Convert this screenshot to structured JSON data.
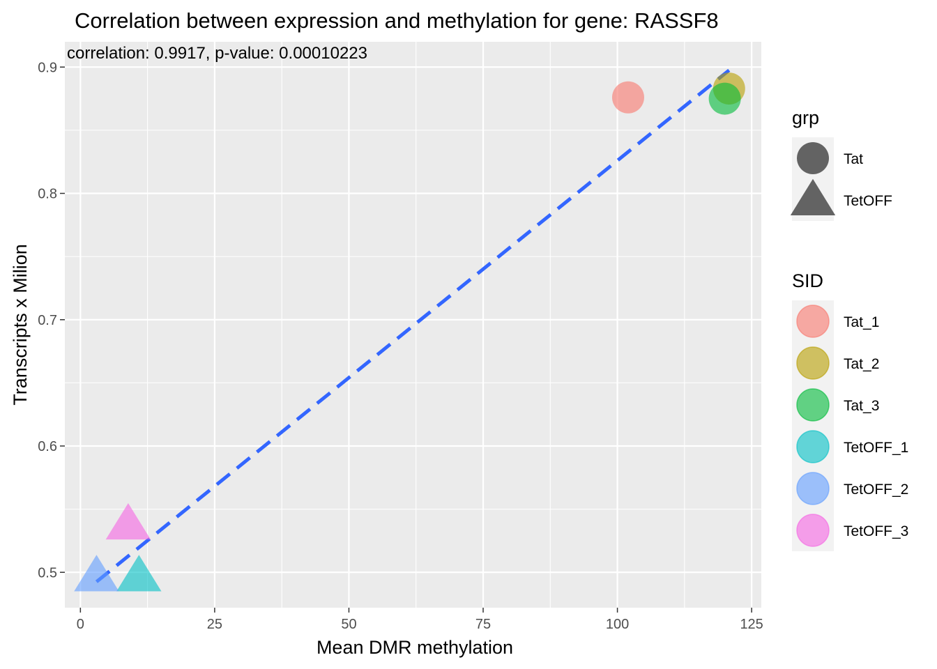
{
  "chart_data": {
    "type": "scatter",
    "title": "Correlation between expression and methylation for gene: RASSF8",
    "annotation": "correlation: 0.9917, p-value: 0.00010223",
    "xlabel": "Mean DMR methylation",
    "ylabel": "Transcripts x Milion",
    "xlim": [
      -2.9,
      126.8
    ],
    "ylim": [
      0.472,
      0.92
    ],
    "x_ticks": [
      {
        "value": 0,
        "label": "0"
      },
      {
        "value": 25,
        "label": "25"
      },
      {
        "value": 50,
        "label": "50"
      },
      {
        "value": 75,
        "label": "75"
      },
      {
        "value": 100,
        "label": "100"
      },
      {
        "value": 125,
        "label": "125"
      }
    ],
    "y_ticks": [
      {
        "value": 0.5,
        "label": "0.5"
      },
      {
        "value": 0.6,
        "label": "0.6"
      },
      {
        "value": 0.7,
        "label": "0.7"
      },
      {
        "value": 0.8,
        "label": "0.8"
      },
      {
        "value": 0.9,
        "label": "0.9"
      }
    ],
    "grid": true,
    "points": [
      {
        "sid": "Tat_1",
        "grp": "Tat",
        "x": 102.0,
        "y": 0.876
      },
      {
        "sid": "Tat_2",
        "grp": "Tat",
        "x": 120.8,
        "y": 0.883
      },
      {
        "sid": "Tat_3",
        "grp": "Tat",
        "x": 120.0,
        "y": 0.875
      },
      {
        "sid": "TetOFF_1",
        "grp": "TetOFF",
        "x": 10.9,
        "y": 0.496
      },
      {
        "sid": "TetOFF_2",
        "grp": "TetOFF",
        "x": 3.0,
        "y": 0.496
      },
      {
        "sid": "TetOFF_3",
        "grp": "TetOFF",
        "x": 8.9,
        "y": 0.537
      }
    ],
    "trend_line": {
      "style": "dashed",
      "color": "#3366ff",
      "x": [
        3.0,
        120.8
      ],
      "y": [
        0.4925,
        0.8975
      ]
    },
    "legend_placement": "right",
    "legends": [
      {
        "title": "grp",
        "items": [
          {
            "label": "Tat",
            "shape": "circle",
            "color": "#636363"
          },
          {
            "label": "TetOFF",
            "shape": "triangle",
            "color": "#636363"
          }
        ]
      },
      {
        "title": "SID",
        "items": [
          {
            "label": "Tat_1",
            "shape": "circle",
            "color": "#F8766D"
          },
          {
            "label": "Tat_2",
            "shape": "circle",
            "color": "#B79F00"
          },
          {
            "label": "Tat_3",
            "shape": "circle",
            "color": "#00BA38"
          },
          {
            "label": "TetOFF_1",
            "shape": "circle",
            "color": "#00BFC4"
          },
          {
            "label": "TetOFF_2",
            "shape": "circle",
            "color": "#619CFF"
          },
          {
            "label": "TetOFF_3",
            "shape": "circle",
            "color": "#F564E3"
          }
        ]
      }
    ],
    "colors": {
      "panel": "#ebebeb",
      "grid": "#ffffff",
      "legend_key_bg": "#f2f2f2",
      "tick_mark": "#333333"
    }
  }
}
